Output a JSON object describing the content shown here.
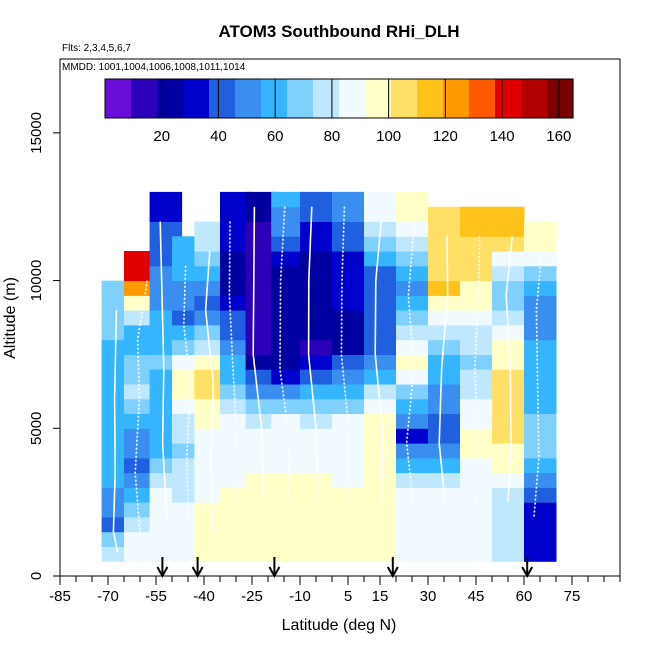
{
  "chart_data": {
    "type": "heatmap",
    "title": "ATOM3 Southbound RHi_DLH",
    "flights_label": "Flts: 2,3,4,5,6,7",
    "mmdd_label": "MMDD: 1001,1004,1006,1008,1011,1014",
    "xlabel": "Latitude (deg N)",
    "ylabel": "Altitude (m)",
    "xlim": [
      -85,
      90
    ],
    "ylim": [
      0,
      17500
    ],
    "x_tick_labels": [
      -85,
      -70,
      -55,
      -40,
      -25,
      -10,
      5,
      15,
      30,
      45,
      60,
      75
    ],
    "y_tick_labels": [
      0,
      5000,
      10000,
      15000
    ],
    "colorbar": {
      "range": [
        0,
        165
      ],
      "tick_labels": [
        20,
        40,
        60,
        80,
        100,
        120,
        140,
        160
      ],
      "colors": [
        "#6a0dd8",
        "#2a00b8",
        "#0000a0",
        "#0000cd",
        "#1f5fe0",
        "#3a8ef0",
        "#35b4ff",
        "#7fd0ff",
        "#bfe8ff",
        "#f0faff",
        "#ffffc8",
        "#ffe066",
        "#ffc21a",
        "#ff9900",
        "#ff5a00",
        "#e00000",
        "#b00000",
        "#7a0000"
      ]
    },
    "arrow_latitudes": [
      -53,
      -42,
      -18,
      19,
      61
    ],
    "profiles": [
      {
        "lat": -67,
        "alt": [
          9000,
          6000,
          3500,
          1500,
          800
        ],
        "rhi": [
          70,
          55,
          60,
          45,
          80
        ]
      },
      {
        "lat": -60,
        "alt": [
          10000,
          8000,
          6000,
          3500,
          1200
        ],
        "rhi": [
          140,
          60,
          75,
          40,
          85
        ]
      },
      {
        "lat": -52,
        "alt": [
          12000,
          9500,
          7000,
          4500,
          2000
        ],
        "rhi": [
          35,
          50,
          65,
          55,
          90
        ]
      },
      {
        "lat": -45,
        "alt": [
          10500,
          8500,
          6500,
          4000,
          1800
        ],
        "rhi": [
          60,
          45,
          100,
          70,
          85
        ]
      },
      {
        "lat": -38,
        "alt": [
          11000,
          9000,
          6500,
          4000,
          1500
        ],
        "rhi": [
          75,
          40,
          105,
          85,
          95
        ]
      },
      {
        "lat": -30,
        "alt": [
          12000,
          9500,
          7000,
          4500,
          2500
        ],
        "rhi": [
          30,
          25,
          55,
          90,
          92
        ]
      },
      {
        "lat": -22,
        "alt": [
          12500,
          10000,
          7500,
          5000,
          2500
        ],
        "rhi": [
          20,
          15,
          10,
          80,
          95
        ]
      },
      {
        "lat": -14,
        "alt": [
          12500,
          10000,
          7000,
          5000,
          2500
        ],
        "rhi": [
          60,
          25,
          20,
          85,
          95
        ]
      },
      {
        "lat": -5,
        "alt": [
          12500,
          10000,
          7500,
          5000,
          2500
        ],
        "rhi": [
          45,
          20,
          18,
          80,
          95
        ]
      },
      {
        "lat": 5,
        "alt": [
          12500,
          10000,
          7500,
          5000,
          2500
        ],
        "rhi": [
          50,
          30,
          25,
          85,
          92
        ]
      },
      {
        "lat": 15,
        "alt": [
          12000,
          10000,
          7500,
          5000,
          2500
        ],
        "rhi": [
          90,
          45,
          40,
          100,
          95
        ]
      },
      {
        "lat": 25,
        "alt": [
          12000,
          9500,
          7000,
          4500,
          2500
        ],
        "rhi": [
          100,
          50,
          95,
          35,
          90
        ]
      },
      {
        "lat": 35,
        "alt": [
          11500,
          9500,
          7000,
          4500,
          2500
        ],
        "rhi": [
          105,
          110,
          60,
          40,
          88
        ]
      },
      {
        "lat": 45,
        "alt": [
          11500,
          9500,
          7000,
          4500,
          2500
        ],
        "rhi": [
          110,
          100,
          70,
          95,
          85
        ]
      },
      {
        "lat": 55,
        "alt": [
          11500,
          9500,
          7000,
          4500,
          2500
        ],
        "rhi": [
          115,
          65,
          100,
          105,
          80
        ]
      },
      {
        "lat": 65,
        "alt": [
          11000,
          9000,
          6500,
          4000,
          2000
        ],
        "rhi": [
          95,
          50,
          60,
          70,
          30
        ]
      }
    ]
  }
}
